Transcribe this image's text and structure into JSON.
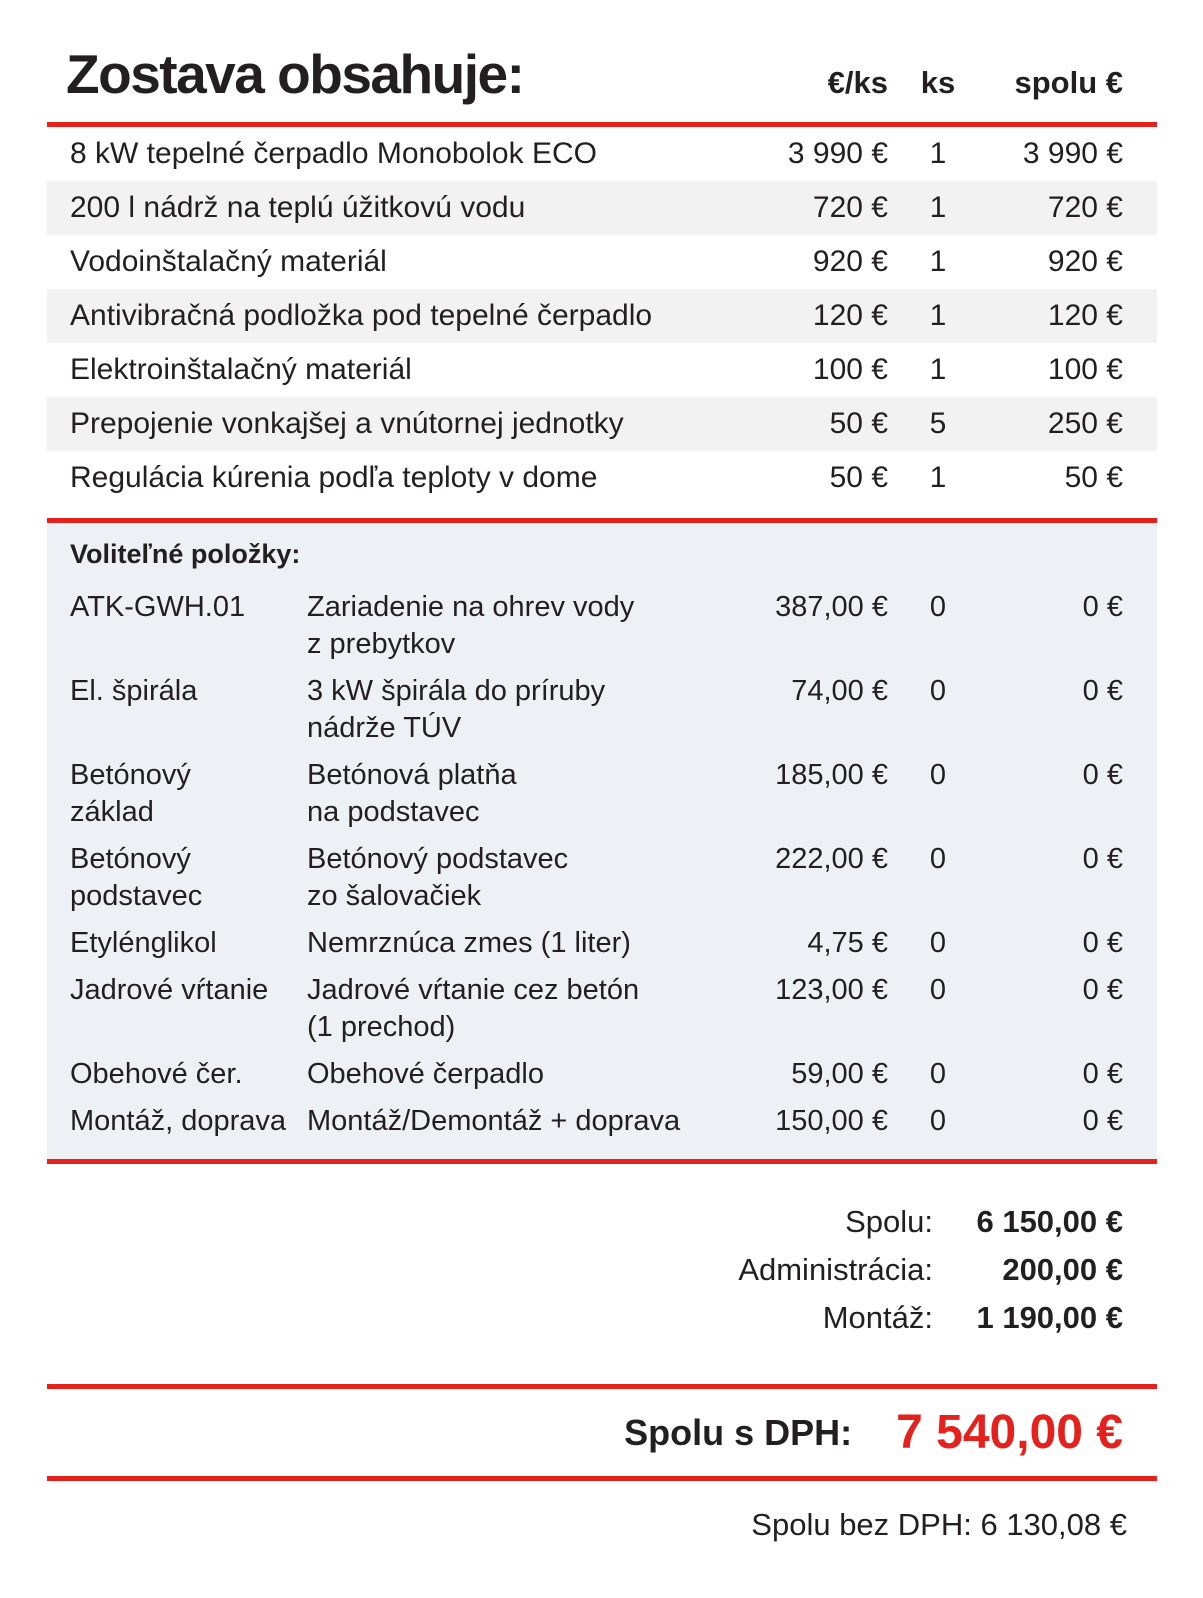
{
  "header": {
    "title": "Zostava obsahuje:",
    "col_price": "€/ks",
    "col_qty": "ks",
    "col_total": "spolu €"
  },
  "main_items": [
    {
      "name": "8 kW tepelné čerpadlo Monobolok ECO",
      "price": "3 990 €",
      "qty": "1",
      "total": "3 990 €"
    },
    {
      "name": "200 l nádrž na teplú úžitkovú vodu",
      "price": "720 €",
      "qty": "1",
      "total": "720 €"
    },
    {
      "name": "Vodoinštalačný materiál",
      "price": "920 €",
      "qty": "1",
      "total": "920 €"
    },
    {
      "name": "Antivibračná podložka pod tepelné čerpadlo",
      "price": "120 €",
      "qty": "1",
      "total": "120 €"
    },
    {
      "name": "Elektroinštalačný materiál",
      "price": "100 €",
      "qty": "1",
      "total": "100 €"
    },
    {
      "name": "Prepojenie vonkajšej a vnútornej jednotky",
      "price": "50 €",
      "qty": "5",
      "total": "250 €"
    },
    {
      "name": "Regulácia kúrenia podľa teploty v dome",
      "price": "50 €",
      "qty": "1",
      "total": "50 €"
    }
  ],
  "optional": {
    "title": "Voliteľné položky:",
    "items": [
      {
        "code": "ATK-GWH.01",
        "desc": "Zariadenie na ohrev vody\nz prebytkov",
        "price": "387,00 €",
        "qty": "0",
        "total": "0 €"
      },
      {
        "code": "El. špirála",
        "desc": "3 kW špirála do príruby\nnádrže TÚV",
        "price": "74,00 €",
        "qty": "0",
        "total": "0 €"
      },
      {
        "code": "Betónový\nzáklad",
        "desc": "Betónová platňa\nna podstavec",
        "price": "185,00 €",
        "qty": "0",
        "total": "0 €"
      },
      {
        "code": "Betónový\npodstavec",
        "desc": "Betónový podstavec\nzo šalovačiek",
        "price": "222,00 €",
        "qty": "0",
        "total": "0 €"
      },
      {
        "code": "Etylénglikol",
        "desc": "Nemrznúca zmes (1 liter)",
        "price": "4,75 €",
        "qty": "0",
        "total": "0 €"
      },
      {
        "code": "Jadrové vŕtanie",
        "desc": "Jadrové vŕtanie cez betón\n(1 prechod)",
        "price": "123,00 €",
        "qty": "0",
        "total": "0 €"
      },
      {
        "code": "Obehové čer.",
        "desc": "Obehové čerpadlo",
        "price": "59,00 €",
        "qty": "0",
        "total": "0 €"
      },
      {
        "code": "Montáž, doprava",
        "desc": "Montáž/Demontáž + doprava",
        "price": "150,00 €",
        "qty": "0",
        "total": "0 €"
      }
    ]
  },
  "totals": {
    "rows": [
      {
        "label": "Spolu:",
        "value": "6 150,00 €"
      },
      {
        "label": "Administrácia:",
        "value": "200,00 €"
      },
      {
        "label": "Montáž:",
        "value": "1 190,00 €"
      }
    ],
    "with_vat_label": "Spolu s DPH:",
    "with_vat_value": "7 540,00 €",
    "without_vat": "Spolu bez DPH: 6 130,08 €"
  },
  "colors": {
    "accent_red": "#e4211c",
    "text": "#231f20",
    "row_stripe": "#f2f2f2",
    "optional_panel": "#edf1f6"
  }
}
